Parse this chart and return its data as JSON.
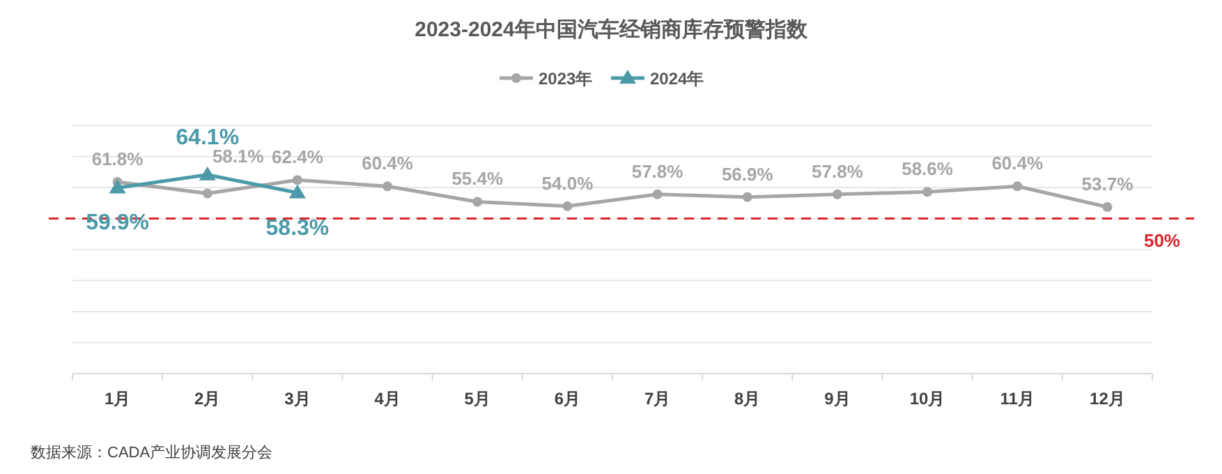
{
  "chart_data": {
    "type": "line",
    "title": "2023-2024年中国汽车经销商库存预警指数",
    "categories": [
      "1月",
      "2月",
      "3月",
      "4月",
      "5月",
      "6月",
      "7月",
      "8月",
      "9月",
      "10月",
      "11月",
      "12月"
    ],
    "series": [
      {
        "name": "2023年",
        "color": "#a6a6a6",
        "marker": "circle",
        "values": [
          61.8,
          58.1,
          62.4,
          60.4,
          55.4,
          54.0,
          57.8,
          56.9,
          57.8,
          58.6,
          60.4,
          53.7
        ],
        "value_labels": [
          "61.8%",
          "58.1%",
          "62.4%",
          "60.4%",
          "55.4%",
          "54.0%",
          "57.8%",
          "56.9%",
          "57.8%",
          "58.6%",
          "60.4%",
          "53.7%"
        ]
      },
      {
        "name": "2024年",
        "color": "#4a9aa8",
        "marker": "triangle",
        "values": [
          59.9,
          64.1,
          58.3,
          null,
          null,
          null,
          null,
          null,
          null,
          null,
          null,
          null
        ],
        "value_labels": [
          "59.9%",
          "64.1%",
          "58.3%",
          null,
          null,
          null,
          null,
          null,
          null,
          null,
          null,
          null
        ]
      }
    ],
    "ylim": [
      0,
      80
    ],
    "yticks": [
      {
        "value": 0,
        "label": null
      },
      {
        "value": 10,
        "label": null
      },
      {
        "value": 20,
        "label": null
      },
      {
        "value": 30,
        "label": null
      },
      {
        "value": 40,
        "label": null
      },
      {
        "value": 50,
        "label": null
      },
      {
        "value": 60,
        "label": null
      },
      {
        "value": 70,
        "label": null
      },
      {
        "value": 80,
        "label": null
      }
    ],
    "tick_labels": "x",
    "grid": "y",
    "legend": "top",
    "ref_lines": [
      {
        "axis": "y",
        "value": 50,
        "label": "50%",
        "color": "#d9262b",
        "line_style": "dashed"
      }
    ],
    "annotations": [
      "数据来源：CADA产业协调发展分会"
    ]
  }
}
